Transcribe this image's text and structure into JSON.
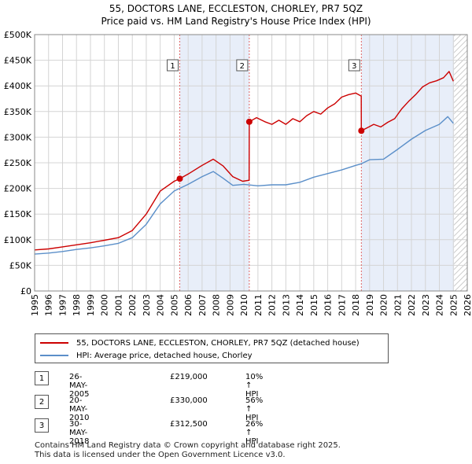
{
  "header": {
    "title": "55, DOCTORS LANE, ECCLESTON, CHORLEY, PR7 5QZ",
    "subtitle": "Price paid vs. HM Land Registry's House Price Index (HPI)"
  },
  "chart_data": {
    "type": "line",
    "xlim": [
      1995,
      2026
    ],
    "ylim": [
      0,
      500000
    ],
    "x_ticks": [
      1995,
      1996,
      1997,
      1998,
      1999,
      2000,
      2001,
      2002,
      2003,
      2004,
      2005,
      2006,
      2007,
      2008,
      2009,
      2010,
      2011,
      2012,
      2013,
      2014,
      2015,
      2016,
      2017,
      2018,
      2019,
      2020,
      2021,
      2022,
      2023,
      2024,
      2025,
      2026
    ],
    "y_ticks": [
      {
        "value": 0,
        "label": "£0"
      },
      {
        "value": 50000,
        "label": "£50K"
      },
      {
        "value": 100000,
        "label": "£100K"
      },
      {
        "value": 150000,
        "label": "£150K"
      },
      {
        "value": 200000,
        "label": "£200K"
      },
      {
        "value": 250000,
        "label": "£250K"
      },
      {
        "value": 300000,
        "label": "£300K"
      },
      {
        "value": 350000,
        "label": "£350K"
      },
      {
        "value": 400000,
        "label": "£400K"
      },
      {
        "value": 450000,
        "label": "£450K"
      },
      {
        "value": 500000,
        "label": "£500K"
      }
    ],
    "shaded_periods": [
      [
        2005.4,
        2010.38
      ],
      [
        2018.41,
        2025.05
      ]
    ],
    "hatched_after": 2025.05,
    "series": [
      {
        "name": "55, DOCTORS LANE, ECCLESTON, CHORLEY, PR7 5QZ (detached house)",
        "color": "#cc0000",
        "x": [
          1995,
          1996,
          1997,
          1998,
          1999,
          2000,
          2001,
          2002,
          2003,
          2004,
          2005.0,
          2005.4,
          2006,
          2007,
          2007.8,
          2008.5,
          2009.2,
          2009.9,
          2010.37,
          2010.38,
          2010.9,
          2011.5,
          2012,
          2012.5,
          2013,
          2013.5,
          2014,
          2014.5,
          2015,
          2015.5,
          2016,
          2016.5,
          2017,
          2017.5,
          2018.0,
          2018.4,
          2018.41,
          2018.8,
          2019.3,
          2019.8,
          2020.3,
          2020.8,
          2021.3,
          2021.8,
          2022.3,
          2022.8,
          2023.3,
          2023.8,
          2024.3,
          2024.7,
          2025.0
        ],
        "values": [
          80000,
          82000,
          86000,
          90000,
          94000,
          99000,
          104000,
          118000,
          150000,
          195000,
          214000,
          219000,
          228000,
          245000,
          257000,
          244000,
          223000,
          214000,
          216000,
          330000,
          338000,
          330000,
          325000,
          333000,
          325000,
          336000,
          330000,
          342000,
          350000,
          345000,
          357000,
          365000,
          378000,
          383000,
          386000,
          380000,
          312500,
          318000,
          325000,
          320000,
          329000,
          336000,
          355000,
          370000,
          383000,
          398000,
          406000,
          410000,
          416000,
          428000,
          409000
        ]
      },
      {
        "name": "HPI: Average price, detached house, Chorley",
        "color": "#5b8fc9",
        "x": [
          1995,
          1996,
          1997,
          1998,
          1999,
          2000,
          2001,
          2002,
          2003,
          2004,
          2005,
          2006,
          2007,
          2007.8,
          2008.5,
          2009.2,
          2010,
          2011,
          2012,
          2013,
          2014,
          2015,
          2016,
          2017,
          2018,
          2018.4,
          2019,
          2020,
          2021,
          2022,
          2023,
          2024,
          2024.6,
          2025.0
        ],
        "values": [
          72000,
          74000,
          77000,
          81000,
          84000,
          88000,
          93000,
          104000,
          130000,
          170000,
          195000,
          208000,
          223000,
          233000,
          220000,
          206000,
          208000,
          205000,
          207000,
          207000,
          212000,
          222000,
          229000,
          236000,
          245000,
          248000,
          256000,
          257000,
          276000,
          296000,
          313000,
          325000,
          340000,
          327000
        ]
      }
    ],
    "sales": [
      {
        "id": "1",
        "x": 2005.4,
        "price": 219000
      },
      {
        "id": "2",
        "x": 2010.38,
        "price": 330000
      },
      {
        "id": "3",
        "x": 2018.41,
        "price": 312500
      }
    ]
  },
  "legend": {
    "items": [
      {
        "label": "55, DOCTORS LANE, ECCLESTON, CHORLEY, PR7 5QZ (detached house)",
        "color": "#cc0000"
      },
      {
        "label": "HPI: Average price, detached house, Chorley",
        "color": "#5b8fc9"
      }
    ]
  },
  "sales_table": [
    {
      "id": "1",
      "date": "26-MAY-2005",
      "price": "£219,000",
      "hpi": "10% ↑ HPI"
    },
    {
      "id": "2",
      "date": "20-MAY-2010",
      "price": "£330,000",
      "hpi": "56% ↑ HPI"
    },
    {
      "id": "3",
      "date": "30-MAY-2018",
      "price": "£312,500",
      "hpi": "26% ↑ HPI"
    }
  ],
  "footer": {
    "line1": "Contains HM Land Registry data © Crown copyright and database right 2025.",
    "line2": "This data is licensed under the Open Government Licence v3.0."
  }
}
